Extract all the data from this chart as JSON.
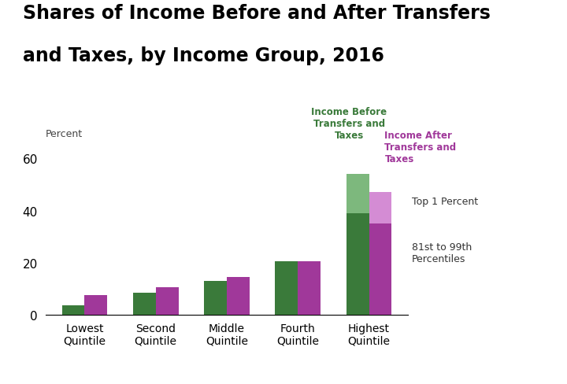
{
  "title_line1": "Shares of Income Before and After Transfers",
  "title_line2": "and Taxes, by Income Group, 2016",
  "ylabel": "Percent",
  "categories": [
    "Lowest\nQuintile",
    "Second\nQuintile",
    "Middle\nQuintile",
    "Fourth\nQuintile",
    "Highest\nQuintile"
  ],
  "green_bottom": [
    3.5,
    8.5,
    13.0,
    20.5,
    39.0
  ],
  "green_top": [
    0,
    0,
    0,
    0,
    15.0
  ],
  "purple_bottom": [
    7.5,
    10.5,
    14.5,
    20.5,
    35.0
  ],
  "purple_top": [
    0,
    0,
    0,
    0,
    12.0
  ],
  "color_green_dark": "#3a7a3a",
  "color_green_light": "#7db87d",
  "color_purple_dark": "#a0389a",
  "color_purple_light": "#d48cd4",
  "ylim": [
    0,
    65
  ],
  "yticks": [
    0,
    20,
    40,
    60
  ],
  "bar_width": 0.32,
  "legend_green_label": "Income Before\nTransfers and\nTaxes",
  "legend_purple_label": "Income After\nTransfers and\nTaxes",
  "annot_top1": "Top 1 Percent",
  "annot_8199": "81st to 99th\nPercentiles",
  "background_color": "#ffffff"
}
